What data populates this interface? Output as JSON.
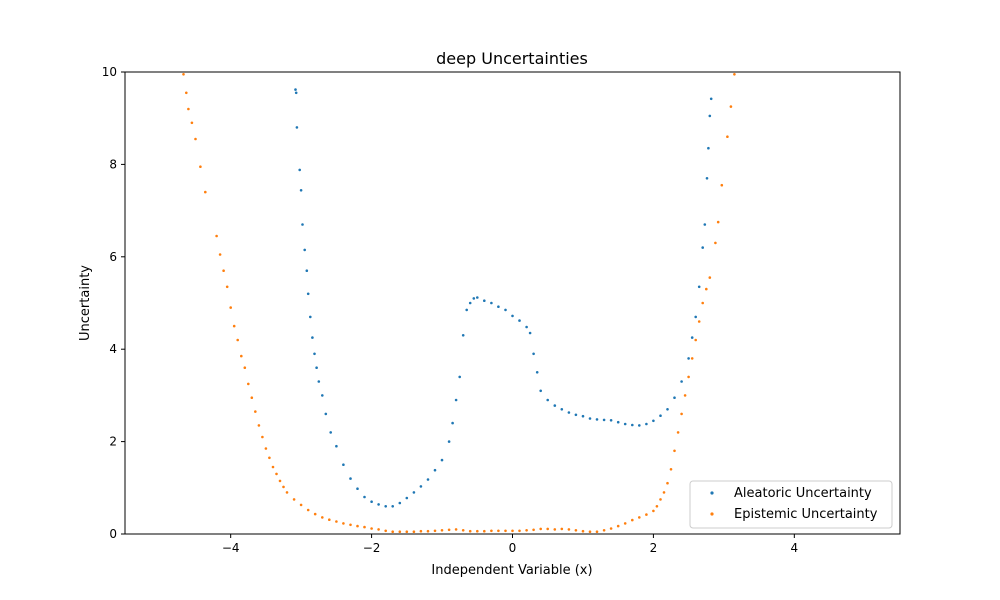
{
  "chart_data": {
    "type": "scatter",
    "title": "deep Uncertainties",
    "xlabel": "Independent Variable (x)",
    "ylabel": "Uncertainty",
    "xlim": [
      -5.5,
      5.5
    ],
    "ylim": [
      0,
      10
    ],
    "xticks": [
      -4,
      -2,
      0,
      2,
      4
    ],
    "xtick_labels": [
      "−4",
      "−2",
      "0",
      "2",
      "4"
    ],
    "yticks": [
      0,
      2,
      4,
      6,
      8,
      10
    ],
    "ytick_labels": [
      "0",
      "2",
      "4",
      "6",
      "8",
      "10"
    ],
    "grid": false,
    "legend_position": "lower-right",
    "series": [
      {
        "name": "Aleatoric Uncertainty",
        "color": "#1f77b4",
        "points": [
          [
            -3.08,
            9.62
          ],
          [
            -3.07,
            9.55
          ],
          [
            -3.06,
            8.8
          ],
          [
            -3.02,
            7.88
          ],
          [
            -3.0,
            7.44
          ],
          [
            -2.98,
            6.7
          ],
          [
            -2.95,
            6.15
          ],
          [
            -2.92,
            5.7
          ],
          [
            -2.9,
            5.2
          ],
          [
            -2.87,
            4.7
          ],
          [
            -2.84,
            4.25
          ],
          [
            -2.81,
            3.9
          ],
          [
            -2.78,
            3.6
          ],
          [
            -2.75,
            3.3
          ],
          [
            -2.7,
            3.0
          ],
          [
            -2.65,
            2.6
          ],
          [
            -2.58,
            2.2
          ],
          [
            -2.5,
            1.9
          ],
          [
            -2.4,
            1.5
          ],
          [
            -2.3,
            1.2
          ],
          [
            -2.2,
            0.98
          ],
          [
            -2.1,
            0.8
          ],
          [
            -2.0,
            0.7
          ],
          [
            -1.9,
            0.64
          ],
          [
            -1.8,
            0.6
          ],
          [
            -1.7,
            0.6
          ],
          [
            -1.6,
            0.67
          ],
          [
            -1.5,
            0.78
          ],
          [
            -1.4,
            0.9
          ],
          [
            -1.3,
            1.03
          ],
          [
            -1.2,
            1.18
          ],
          [
            -1.1,
            1.38
          ],
          [
            -1.0,
            1.6
          ],
          [
            -0.9,
            2.0
          ],
          [
            -0.85,
            2.4
          ],
          [
            -0.8,
            2.9
          ],
          [
            -0.75,
            3.4
          ],
          [
            -0.7,
            4.3
          ],
          [
            -0.65,
            4.85
          ],
          [
            -0.6,
            5.0
          ],
          [
            -0.55,
            5.1
          ],
          [
            -0.5,
            5.12
          ],
          [
            -0.4,
            5.05
          ],
          [
            -0.3,
            5.0
          ],
          [
            -0.2,
            4.92
          ],
          [
            -0.1,
            4.85
          ],
          [
            0.0,
            4.72
          ],
          [
            0.1,
            4.62
          ],
          [
            0.2,
            4.48
          ],
          [
            0.25,
            4.35
          ],
          [
            0.3,
            3.9
          ],
          [
            0.35,
            3.5
          ],
          [
            0.4,
            3.1
          ],
          [
            0.5,
            2.9
          ],
          [
            0.6,
            2.78
          ],
          [
            0.7,
            2.7
          ],
          [
            0.8,
            2.63
          ],
          [
            0.9,
            2.58
          ],
          [
            1.0,
            2.55
          ],
          [
            1.1,
            2.5
          ],
          [
            1.2,
            2.48
          ],
          [
            1.3,
            2.47
          ],
          [
            1.4,
            2.46
          ],
          [
            1.5,
            2.42
          ],
          [
            1.6,
            2.38
          ],
          [
            1.7,
            2.36
          ],
          [
            1.8,
            2.35
          ],
          [
            1.9,
            2.38
          ],
          [
            2.0,
            2.45
          ],
          [
            2.1,
            2.56
          ],
          [
            2.2,
            2.7
          ],
          [
            2.3,
            2.95
          ],
          [
            2.4,
            3.3
          ],
          [
            2.5,
            3.8
          ],
          [
            2.55,
            4.25
          ],
          [
            2.6,
            4.7
          ],
          [
            2.65,
            5.35
          ],
          [
            2.7,
            6.2
          ],
          [
            2.73,
            6.7
          ],
          [
            2.76,
            7.7
          ],
          [
            2.78,
            8.35
          ],
          [
            2.8,
            9.05
          ],
          [
            2.82,
            9.42
          ]
        ]
      },
      {
        "name": "Epistemic Uncertainty",
        "color": "#ff7f0e",
        "points": [
          [
            -4.67,
            9.95
          ],
          [
            -4.63,
            9.55
          ],
          [
            -4.6,
            9.2
          ],
          [
            -4.55,
            8.9
          ],
          [
            -4.5,
            8.55
          ],
          [
            -4.43,
            7.95
          ],
          [
            -4.36,
            7.4
          ],
          [
            -4.2,
            6.45
          ],
          [
            -4.15,
            6.05
          ],
          [
            -4.1,
            5.7
          ],
          [
            -4.05,
            5.35
          ],
          [
            -4.0,
            4.9
          ],
          [
            -3.95,
            4.5
          ],
          [
            -3.9,
            4.2
          ],
          [
            -3.85,
            3.85
          ],
          [
            -3.8,
            3.6
          ],
          [
            -3.75,
            3.25
          ],
          [
            -3.7,
            2.95
          ],
          [
            -3.65,
            2.65
          ],
          [
            -3.6,
            2.35
          ],
          [
            -3.55,
            2.1
          ],
          [
            -3.5,
            1.85
          ],
          [
            -3.45,
            1.65
          ],
          [
            -3.4,
            1.45
          ],
          [
            -3.35,
            1.3
          ],
          [
            -3.3,
            1.15
          ],
          [
            -3.25,
            1.02
          ],
          [
            -3.2,
            0.9
          ],
          [
            -3.1,
            0.75
          ],
          [
            -3.0,
            0.63
          ],
          [
            -2.9,
            0.52
          ],
          [
            -2.8,
            0.43
          ],
          [
            -2.7,
            0.36
          ],
          [
            -2.6,
            0.31
          ],
          [
            -2.5,
            0.27
          ],
          [
            -2.4,
            0.23
          ],
          [
            -2.3,
            0.2
          ],
          [
            -2.2,
            0.17
          ],
          [
            -2.1,
            0.15
          ],
          [
            -2.0,
            0.12
          ],
          [
            -1.9,
            0.1
          ],
          [
            -1.8,
            0.07
          ],
          [
            -1.7,
            0.05
          ],
          [
            -1.6,
            0.05
          ],
          [
            -1.5,
            0.05
          ],
          [
            -1.4,
            0.05
          ],
          [
            -1.3,
            0.06
          ],
          [
            -1.2,
            0.06
          ],
          [
            -1.1,
            0.07
          ],
          [
            -1.0,
            0.08
          ],
          [
            -0.9,
            0.09
          ],
          [
            -0.8,
            0.1
          ],
          [
            -0.7,
            0.08
          ],
          [
            -0.6,
            0.06
          ],
          [
            -0.5,
            0.06
          ],
          [
            -0.4,
            0.06
          ],
          [
            -0.3,
            0.07
          ],
          [
            -0.2,
            0.07
          ],
          [
            -0.1,
            0.07
          ],
          [
            0.0,
            0.07
          ],
          [
            0.1,
            0.07
          ],
          [
            0.2,
            0.08
          ],
          [
            0.3,
            0.09
          ],
          [
            0.4,
            0.11
          ],
          [
            0.5,
            0.11
          ],
          [
            0.6,
            0.1
          ],
          [
            0.7,
            0.11
          ],
          [
            0.8,
            0.1
          ],
          [
            0.9,
            0.08
          ],
          [
            1.0,
            0.06
          ],
          [
            1.1,
            0.05
          ],
          [
            1.2,
            0.05
          ],
          [
            1.3,
            0.08
          ],
          [
            1.4,
            0.12
          ],
          [
            1.5,
            0.17
          ],
          [
            1.6,
            0.23
          ],
          [
            1.7,
            0.3
          ],
          [
            1.8,
            0.36
          ],
          [
            1.9,
            0.42
          ],
          [
            2.0,
            0.5
          ],
          [
            2.05,
            0.6
          ],
          [
            2.1,
            0.75
          ],
          [
            2.15,
            0.9
          ],
          [
            2.2,
            1.1
          ],
          [
            2.25,
            1.4
          ],
          [
            2.3,
            1.8
          ],
          [
            2.35,
            2.2
          ],
          [
            2.4,
            2.6
          ],
          [
            2.45,
            3.0
          ],
          [
            2.5,
            3.4
          ],
          [
            2.55,
            3.8
          ],
          [
            2.6,
            4.2
          ],
          [
            2.65,
            4.6
          ],
          [
            2.7,
            5.0
          ],
          [
            2.75,
            5.3
          ],
          [
            2.8,
            5.55
          ],
          [
            2.88,
            6.3
          ],
          [
            2.92,
            6.75
          ],
          [
            2.97,
            7.55
          ],
          [
            3.05,
            8.6
          ],
          [
            3.1,
            9.25
          ],
          [
            3.15,
            9.95
          ]
        ]
      }
    ]
  }
}
